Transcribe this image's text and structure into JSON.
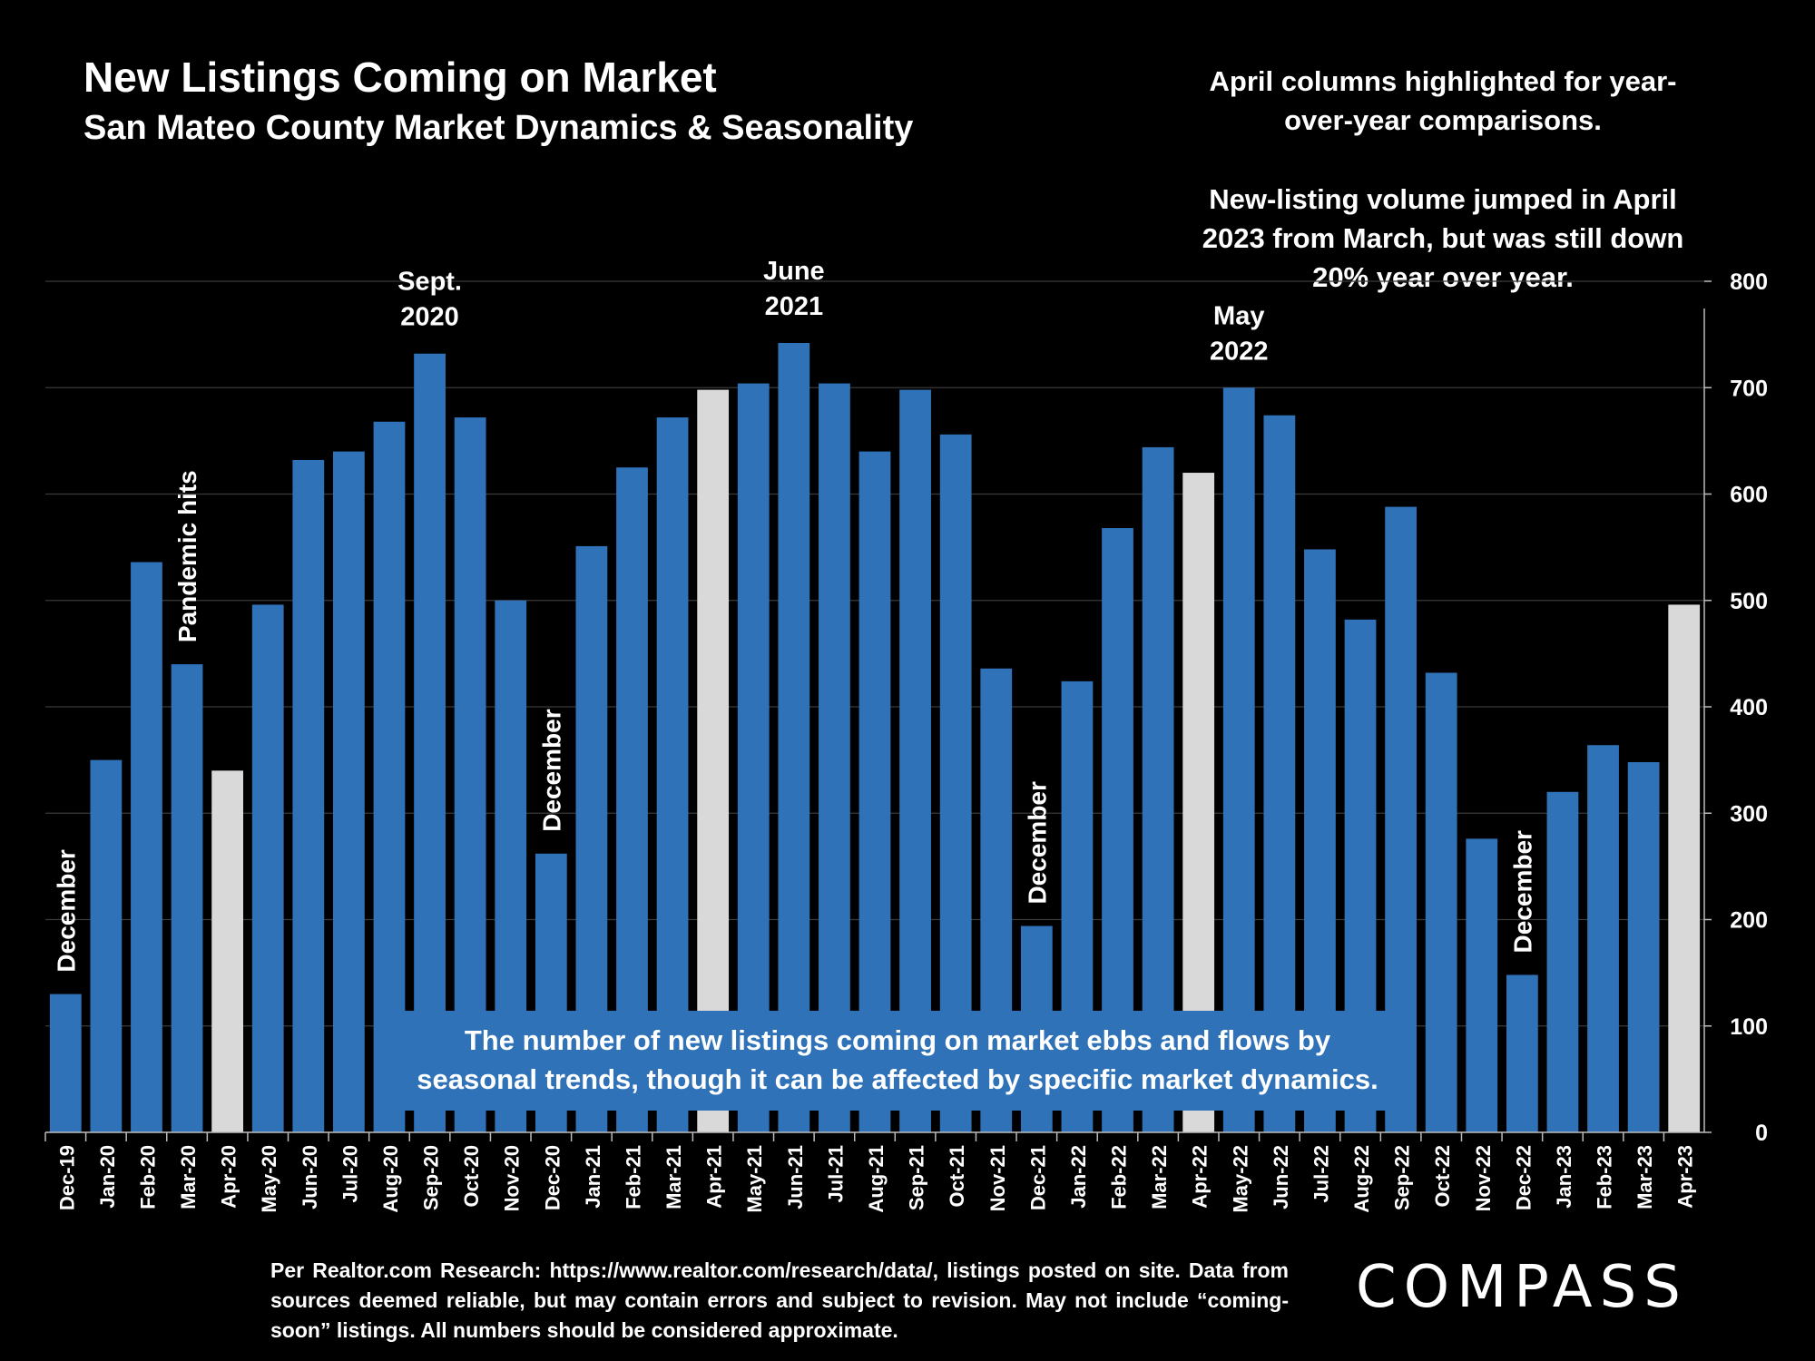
{
  "header": {
    "title": "New Listings Coming on Market",
    "subtitle": "San Mateo County Market Dynamics & Seasonality"
  },
  "notes": {
    "april": "April columns highlighted for year-over-year comparisons.",
    "jump": "New-listing volume jumped in April 2023 from March, but was still down 20% year over year."
  },
  "callout": "The number of new listings coming on market ebbs and flows by seasonal trends, though it can be affected by specific market dynamics.",
  "source": "Per Realtor.com Research: https://www.realtor.com/research/data/, listings posted on site. Data from sources deemed reliable, but may contain errors and subject to revision. May not include “coming-soon” listings. All numbers should be considered approximate.",
  "logo": "COMPASS",
  "colors": {
    "bar": "#2f72b8",
    "highlight": "#d9d9d9",
    "background": "#000000",
    "grid": "#3a3a3a"
  },
  "chart_data": {
    "type": "bar",
    "categories": [
      "Dec-19",
      "Jan-20",
      "Feb-20",
      "Mar-20",
      "Apr-20",
      "May-20",
      "Jun-20",
      "Jul-20",
      "Aug-20",
      "Sep-20",
      "Oct-20",
      "Nov-20",
      "Dec-20",
      "Jan-21",
      "Feb-21",
      "Mar-21",
      "Apr-21",
      "May-21",
      "Jun-21",
      "Jul-21",
      "Aug-21",
      "Sep-21",
      "Oct-21",
      "Nov-21",
      "Dec-21",
      "Jan-22",
      "Feb-22",
      "Mar-22",
      "Apr-22",
      "May-22",
      "Jun-22",
      "Jul-22",
      "Aug-22",
      "Sep-22",
      "Oct-22",
      "Nov-22",
      "Dec-22",
      "Jan-23",
      "Feb-23",
      "Mar-23",
      "Apr-23"
    ],
    "values": [
      130,
      350,
      536,
      440,
      340,
      496,
      632,
      640,
      668,
      732,
      672,
      500,
      262,
      551,
      625,
      672,
      698,
      704,
      742,
      704,
      640,
      698,
      656,
      436,
      194,
      424,
      568,
      644,
      620,
      700,
      674,
      548,
      482,
      588,
      432,
      276,
      148,
      320,
      364,
      348,
      496
    ],
    "highlighted": [
      "Apr-20",
      "Apr-21",
      "Apr-22",
      "Apr-23"
    ],
    "ylim": [
      0,
      800
    ],
    "yticks": [
      0,
      100,
      200,
      300,
      400,
      500,
      600,
      700,
      800
    ],
    "y_axis_side": "right",
    "grid": true,
    "annotations": [
      {
        "text": "December",
        "at": "Dec-19",
        "rotated": true
      },
      {
        "text": "Pandemic hits",
        "at": "Mar-20",
        "rotated": true
      },
      {
        "text": "Sept. 2020",
        "at": "Sep-20",
        "rotated": false
      },
      {
        "text": "December",
        "at": "Dec-20",
        "rotated": true
      },
      {
        "text": "June 2021",
        "at": "Jun-21",
        "rotated": false
      },
      {
        "text": "December",
        "at": "Dec-21",
        "rotated": true
      },
      {
        "text": "May 2022",
        "at": "May-22",
        "rotated": false
      },
      {
        "text": "December",
        "at": "Dec-22",
        "rotated": true
      }
    ]
  }
}
